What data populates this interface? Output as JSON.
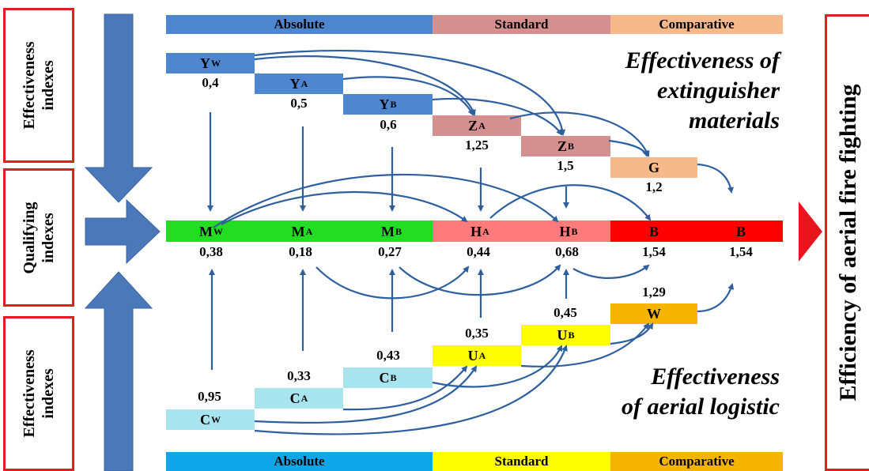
{
  "left_labels": {
    "top": "Effectiveness indexes",
    "middle": "Qualifying indexes",
    "bottom": "Effectiveness indexes"
  },
  "top_bands": [
    "Absolute",
    "Standard",
    "Comparative"
  ],
  "bottom_bands": [
    "Absolute",
    "Standard",
    "Comparative"
  ],
  "colors": {
    "absolute_top": "#4f86d0",
    "standard_top": "#d4908f",
    "comparative_top": "#f5b98b",
    "absolute_bottom": "#0ea5e9",
    "standard_bottom": "#ffff00",
    "comparative_bottom": "#f5b400",
    "q_absolute": "#22dd22",
    "q_standard": "#ff7b7b",
    "q_comparative": "#ff0000",
    "arrow": "#2e5f9e",
    "frame": "#e02020"
  },
  "top_nodes": [
    {
      "letter": "Y",
      "sub": "W",
      "value": "0,4"
    },
    {
      "letter": "Y",
      "sub": "A",
      "value": "0,5"
    },
    {
      "letter": "Y",
      "sub": "B",
      "value": "0,6"
    },
    {
      "letter": "Z",
      "sub": "A",
      "value": "1,25"
    },
    {
      "letter": "Z",
      "sub": "B",
      "value": "1,5"
    },
    {
      "letter": "G",
      "sub": "",
      "value": "1,2"
    }
  ],
  "mid_nodes": [
    {
      "letter": "M",
      "sub": "W",
      "value": "0,38"
    },
    {
      "letter": "M",
      "sub": "A",
      "value": "0,18"
    },
    {
      "letter": "M",
      "sub": "B",
      "value": "0,27"
    },
    {
      "letter": "H",
      "sub": "A",
      "value": "0,44"
    },
    {
      "letter": "H",
      "sub": "B",
      "value": "0,68"
    },
    {
      "letter": "B",
      "sub": "",
      "value": "1,54"
    },
    {
      "letter": "B",
      "sub": "",
      "value": "1,54"
    }
  ],
  "bottom_nodes": [
    {
      "letter": "C",
      "sub": "W",
      "value": "0,95"
    },
    {
      "letter": "C",
      "sub": "A",
      "value": "0,33"
    },
    {
      "letter": "C",
      "sub": "B",
      "value": "0,43"
    },
    {
      "letter": "U",
      "sub": "A",
      "value": "0,35"
    },
    {
      "letter": "U",
      "sub": "B",
      "value": "0,45"
    },
    {
      "letter": "W",
      "sub": "",
      "value": "1,29"
    }
  ],
  "title_top": [
    "Effectiveness of",
    "extinguisher",
    "materials"
  ],
  "title_bottom": [
    "Effectiveness",
    "of aerial logistic"
  ],
  "right_label": "Efficiency of aerial fire fighting"
}
